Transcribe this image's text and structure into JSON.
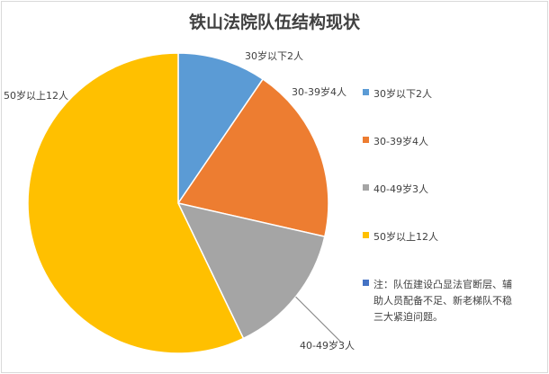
{
  "chart_data": {
    "type": "pie",
    "title": "铁山法院队伍结构现状",
    "categories": [
      "30岁以下2人",
      "30-39岁4人",
      "40-49岁3人",
      "50岁以上12人"
    ],
    "values": [
      2,
      4,
      3,
      12
    ],
    "colors": [
      "#5B9BD5",
      "#ED7D31",
      "#A5A5A5",
      "#FFC000"
    ],
    "data_labels": [
      "30岁以下2人",
      "30-39岁4人",
      "40-49岁3人",
      "50岁以上12人"
    ],
    "legend": {
      "placement": "right",
      "entries": [
        "30岁以下2人",
        "30-39岁4人",
        "40-49岁3人",
        "50岁以上12人"
      ],
      "note": {
        "color": "#4472C4",
        "lines": [
          "注：队伍建设凸显法官断层、辅",
          "助人员配备不足、新老梯队不稳",
          "三大紧迫问题。"
        ]
      }
    }
  }
}
